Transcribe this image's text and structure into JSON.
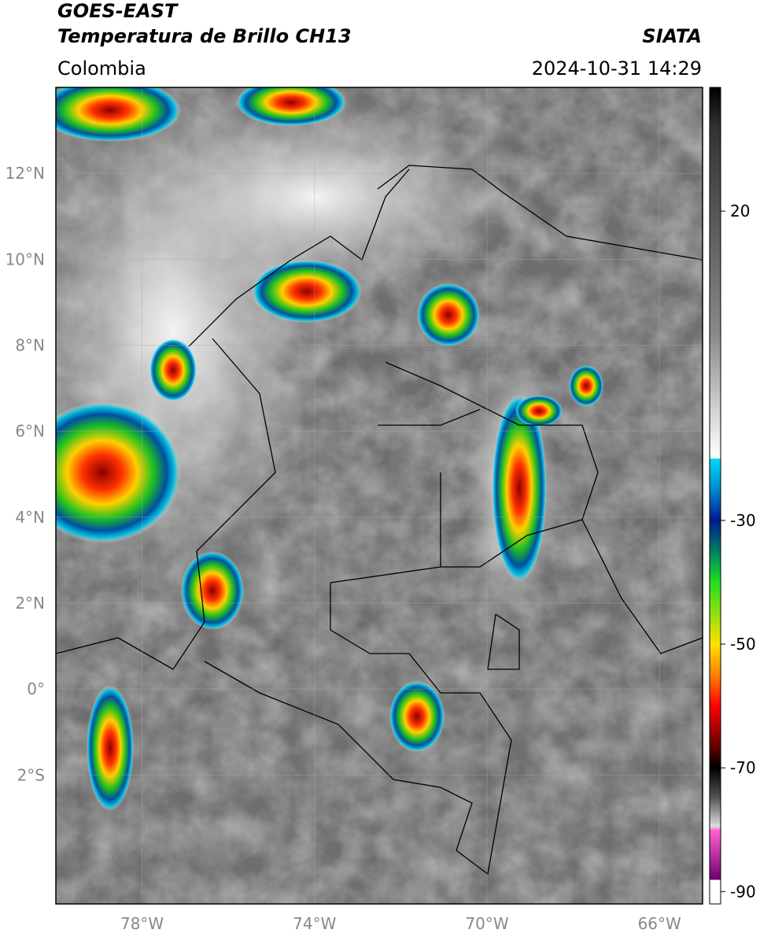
{
  "header": {
    "satellite": "GOES-EAST",
    "product": "Temperatura de Brillo CH13",
    "source": "SIATA",
    "region": "Colombia",
    "datetime": "2024-10-31 14:29"
  },
  "map": {
    "xlim": [
      -80,
      -65
    ],
    "ylim": [
      -5,
      14
    ],
    "xticks": [
      {
        "value": -78,
        "label": "78°W"
      },
      {
        "value": -74,
        "label": "74°W"
      },
      {
        "value": -70,
        "label": "70°W"
      },
      {
        "value": -66,
        "label": "66°W"
      }
    ],
    "yticks": [
      {
        "value": 12,
        "label": "12°N"
      },
      {
        "value": 10,
        "label": "10°N"
      },
      {
        "value": 8,
        "label": "8°N"
      },
      {
        "value": 6,
        "label": "6°N"
      },
      {
        "value": 4,
        "label": "4°N"
      },
      {
        "value": 2,
        "label": "2°N"
      },
      {
        "value": 0,
        "label": "0°"
      },
      {
        "value": -2,
        "label": "2°S"
      }
    ]
  },
  "colorbar": {
    "range": [
      -92,
      40
    ],
    "ticks": [
      20,
      -30,
      -50,
      -70,
      -90
    ]
  }
}
